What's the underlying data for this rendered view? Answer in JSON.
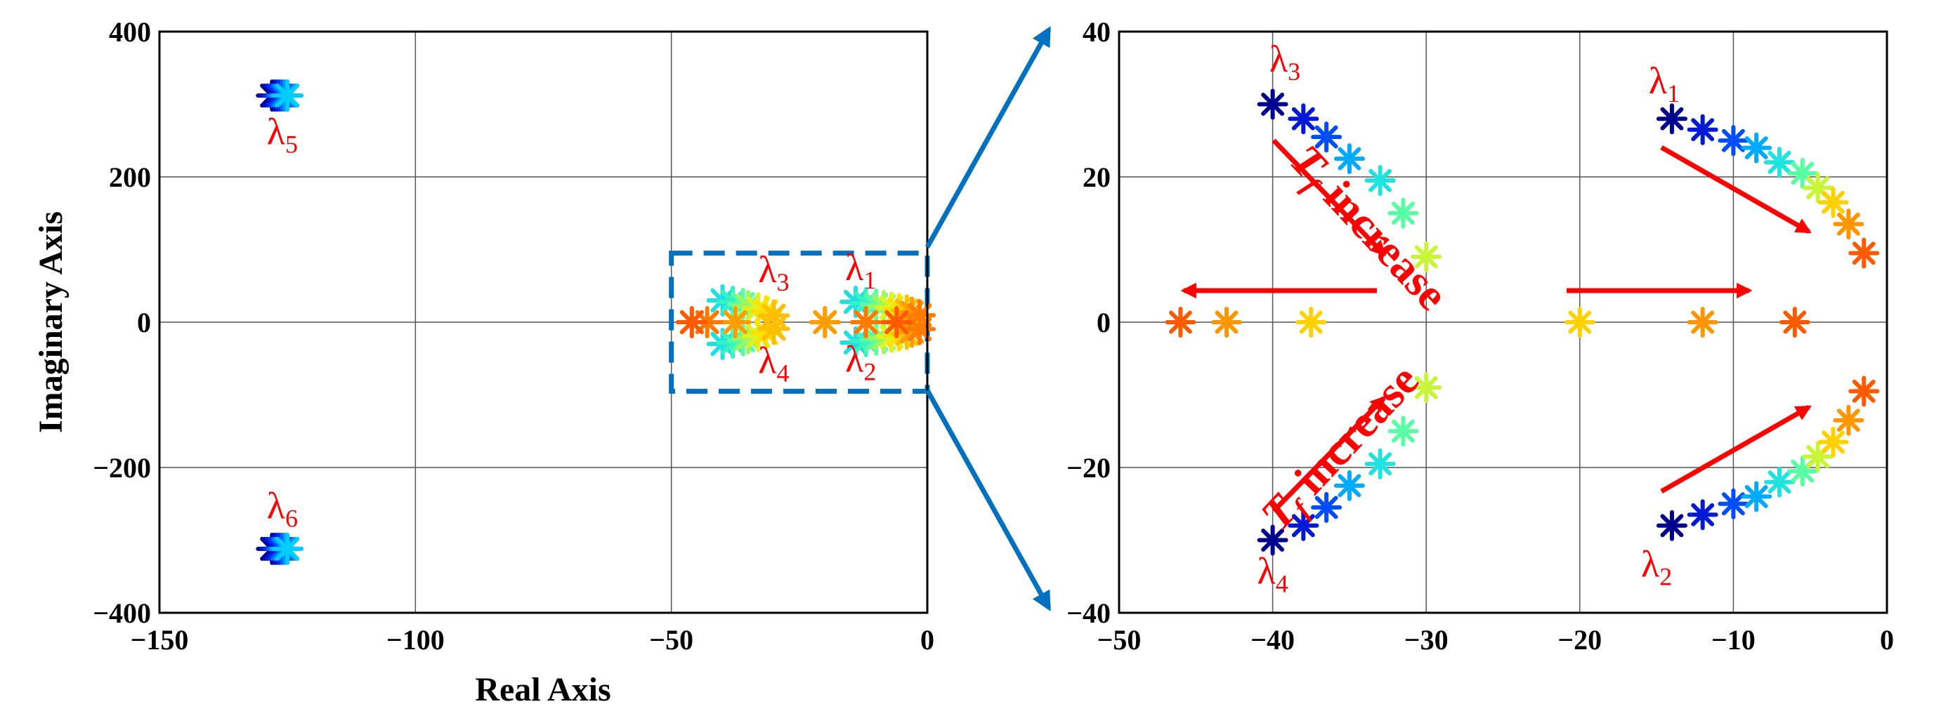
{
  "chart_data": [
    {
      "type": "scatter",
      "xlabel": "Real Axis",
      "ylabel": "Imaginary Axis",
      "xlim": [
        -150,
        0
      ],
      "ylim": [
        -400,
        400
      ],
      "xticks": [
        "−150",
        "−100",
        "−50",
        "0"
      ],
      "yticks": [
        "400",
        "200",
        "0",
        "−200",
        "−400"
      ],
      "grid": true,
      "zoom_box": {
        "x": [
          -50,
          0
        ],
        "y": [
          -95,
          95
        ],
        "style": "dashed",
        "color": "#0070c0"
      },
      "eigen_labels": [
        {
          "symbol": "λ",
          "sub": "5",
          "x": -126,
          "y": 245
        },
        {
          "symbol": "λ",
          "sub": "6",
          "x": -126,
          "y": -270
        },
        {
          "symbol": "λ",
          "sub": "3",
          "x": -30,
          "y": 55
        },
        {
          "symbol": "λ",
          "sub": "4",
          "x": -30,
          "y": -70
        },
        {
          "symbol": "λ",
          "sub": "1",
          "x": -13,
          "y": 58
        },
        {
          "symbol": "λ",
          "sub": "2",
          "x": -13,
          "y": -68
        }
      ],
      "series": [
        {
          "points": [
            [
              -128,
              312
            ],
            [
              -128,
              -312
            ]
          ]
        },
        {
          "points": [
            [
              -127.5,
              312
            ],
            [
              -127.5,
              -312
            ]
          ]
        },
        {
          "points": [
            [
              -127,
              312
            ],
            [
              -127,
              -312
            ]
          ]
        },
        {
          "points": [
            [
              -126.5,
              312
            ],
            [
              -126.5,
              -312
            ]
          ]
        },
        {
          "points": [
            [
              -126,
              312
            ],
            [
              -126,
              -312
            ]
          ]
        },
        {
          "points": [
            [
              -125.5,
              312
            ],
            [
              -125.5,
              -312
            ]
          ]
        },
        {
          "points": [
            [
              -125,
              312
            ],
            [
              -125,
              -312
            ]
          ]
        },
        {
          "points": [
            [
              -40,
              30
            ],
            [
              -40,
              -30
            ],
            [
              -14,
              28
            ],
            [
              -14,
              -28
            ]
          ]
        },
        {
          "points": [
            [
              -38,
              28
            ],
            [
              -38,
              -28
            ],
            [
              -12,
              26
            ],
            [
              -12,
              -26
            ]
          ]
        },
        {
          "points": [
            [
              -36,
              25
            ],
            [
              -36,
              -25
            ],
            [
              -10,
              24
            ],
            [
              -10,
              -24
            ]
          ]
        },
        {
          "points": [
            [
              -35,
              22
            ],
            [
              -35,
              -22
            ],
            [
              -8.5,
              22
            ],
            [
              -8.5,
              -22
            ]
          ]
        },
        {
          "points": [
            [
              -33,
              19
            ],
            [
              -33,
              -19
            ],
            [
              -7,
              20
            ],
            [
              -7,
              -20
            ]
          ]
        },
        {
          "points": [
            [
              -31.5,
              15
            ],
            [
              -31.5,
              -15
            ],
            [
              -5.5,
              18
            ],
            [
              -5.5,
              -18
            ]
          ]
        },
        {
          "points": [
            [
              -30,
              9
            ],
            [
              -30,
              -9
            ],
            [
              -4,
              16
            ],
            [
              -4,
              -16
            ]
          ]
        },
        {
          "points": [
            [
              -37.5,
              0
            ],
            [
              -20,
              0
            ],
            [
              -3,
              13
            ],
            [
              -3,
              -13
            ]
          ]
        },
        {
          "points": [
            [
              -43,
              0
            ],
            [
              -12,
              0
            ],
            [
              -1.5,
              9.5
            ],
            [
              -1.5,
              -9.5
            ]
          ]
        },
        {
          "points": [
            [
              -46,
              0
            ],
            [
              -6,
              0
            ]
          ]
        }
      ]
    },
    {
      "type": "scatter",
      "xlim": [
        -50,
        0
      ],
      "ylim": [
        -40,
        40
      ],
      "xticks": [
        "−50",
        "−40",
        "−30",
        "−20",
        "−10",
        "0"
      ],
      "yticks": [
        "40",
        "20",
        "0",
        "−20",
        "−40"
      ],
      "grid": true,
      "eigen_labels": [
        {
          "symbol": "λ",
          "sub": "3",
          "x": -39.2,
          "y": 34.5
        },
        {
          "symbol": "λ",
          "sub": "1",
          "x": -14.5,
          "y": 31.5
        },
        {
          "symbol": "λ",
          "sub": "4",
          "x": -40.0,
          "y": -36
        },
        {
          "symbol": "λ",
          "sub": "2",
          "x": -15.0,
          "y": -35
        }
      ],
      "annotations": [
        {
          "base": "T",
          "sub": "f",
          "word": "increase",
          "x": -39,
          "y": 22,
          "angle": 47
        },
        {
          "base": "T",
          "sub": "f",
          "word": "increase",
          "x": -39.5,
          "y": -29,
          "angle": -47
        }
      ],
      "series": [
        {
          "points": [
            [
              -40,
              30
            ],
            [
              -40,
              -30
            ],
            [
              -14,
              28
            ],
            [
              -14,
              -28
            ]
          ]
        },
        {
          "points": [
            [
              -38,
              28
            ],
            [
              -38,
              -28
            ],
            [
              -12,
              26.5
            ],
            [
              -12,
              -26.5
            ]
          ]
        },
        {
          "points": [
            [
              -36.5,
              25.5
            ],
            [
              -36.5,
              -25.5
            ],
            [
              -10,
              25
            ],
            [
              -10,
              -25
            ]
          ]
        },
        {
          "points": [
            [
              -35,
              22.5
            ],
            [
              -35,
              -22.5
            ],
            [
              -8.5,
              24
            ],
            [
              -8.5,
              -24
            ]
          ]
        },
        {
          "points": [
            [
              -33,
              19.5
            ],
            [
              -33,
              -19.5
            ],
            [
              -7,
              22
            ],
            [
              -7,
              -22
            ]
          ]
        },
        {
          "points": [
            [
              -31.5,
              15
            ],
            [
              -31.5,
              -15
            ],
            [
              -5.5,
              20.5
            ],
            [
              -5.5,
              -20.5
            ]
          ]
        },
        {
          "points": [
            [
              -30,
              9
            ],
            [
              -30,
              -9
            ],
            [
              -4.5,
              18.5
            ],
            [
              -4.5,
              -18.5
            ]
          ]
        },
        {
          "points": [
            [
              -37.5,
              0
            ],
            [
              -20,
              0
            ],
            [
              -3.5,
              16.5
            ],
            [
              -3.5,
              -16.5
            ]
          ]
        },
        {
          "points": [
            [
              -43,
              0
            ],
            [
              -12,
              0
            ],
            [
              -2.5,
              13.5
            ],
            [
              -2.5,
              -13.5
            ]
          ]
        },
        {
          "points": [
            [
              -46,
              0
            ],
            [
              -6,
              0
            ],
            [
              -1.5,
              9.5
            ],
            [
              -1.5,
              -9.5
            ]
          ]
        }
      ]
    }
  ]
}
